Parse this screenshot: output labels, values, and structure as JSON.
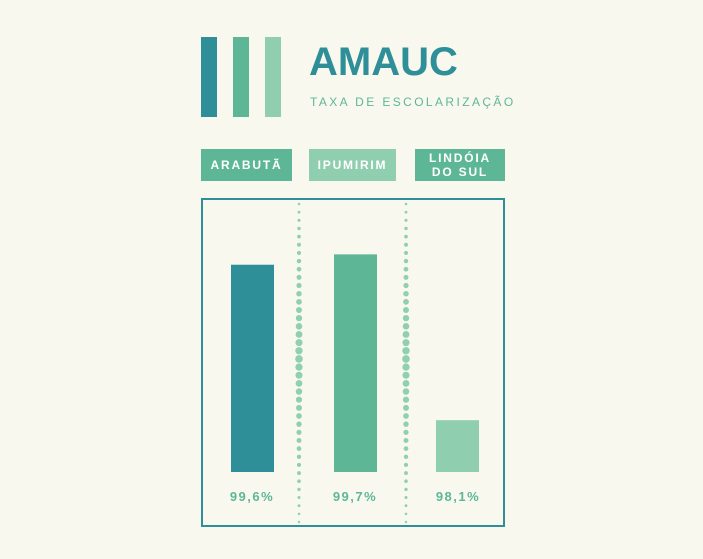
{
  "header": {
    "title": "AMAUC",
    "subtitle": "TAXA DE ESCOLARIZAÇÃO"
  },
  "logo_icon": "three-vertical-bars-icon",
  "colors": {
    "background": "#f9f8ee",
    "title": "#2e8f99",
    "subtitle": "#5db797",
    "frame": "#2e8f99",
    "dotted_divider": "#8fd0b0",
    "value_text": "#5db797",
    "series": [
      "#2e8f99",
      "#5db797",
      "#8fceae"
    ]
  },
  "chart_data": {
    "type": "bar",
    "title": "TAXA DE ESCOLARIZAÇÃO",
    "categories": [
      "ARABUTÃ",
      "IPUMIRIM",
      "LINDÓIA DO SUL"
    ],
    "category_label_lines": [
      [
        "ARABUTÃ"
      ],
      [
        "IPUMIRIM"
      ],
      [
        "LINDÓIA",
        "DO SUL"
      ]
    ],
    "values": [
      99.6,
      99.7,
      98.1
    ],
    "value_labels": [
      "99,6%",
      "99,7%",
      "98,1%"
    ],
    "ylim": [
      97.6,
      99.8
    ],
    "grid": false,
    "legend": "none",
    "dividers": "dotted"
  }
}
